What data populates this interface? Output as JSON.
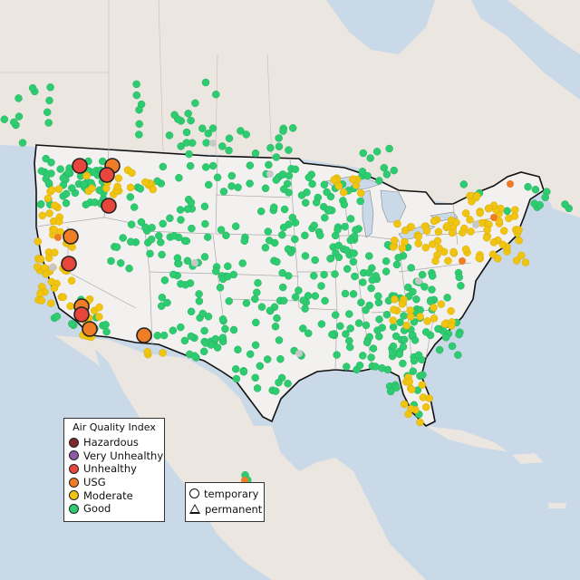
{
  "legend": {
    "title": "Air Quality Index",
    "categories": [
      {
        "label": "Hazardous",
        "color": "#7e2a2a"
      },
      {
        "label": "Very Unhealthy",
        "color": "#8f5aa8"
      },
      {
        "label": "Unhealthy",
        "color": "#e8463c"
      },
      {
        "label": "USG",
        "color": "#ee7d26"
      },
      {
        "label": "Moderate",
        "color": "#f1c40f"
      },
      {
        "label": "Good",
        "color": "#2ecc71"
      }
    ]
  },
  "type_legend": {
    "temporary": "temporary",
    "permanent": "permanent"
  },
  "colors": {
    "water": "#c9d9e8",
    "land": "#ece6e1",
    "us_land": "#f3f1ef",
    "border": "#111111",
    "state_lines": "#aaaaaa",
    "no_data": "#c8c8c8"
  }
}
